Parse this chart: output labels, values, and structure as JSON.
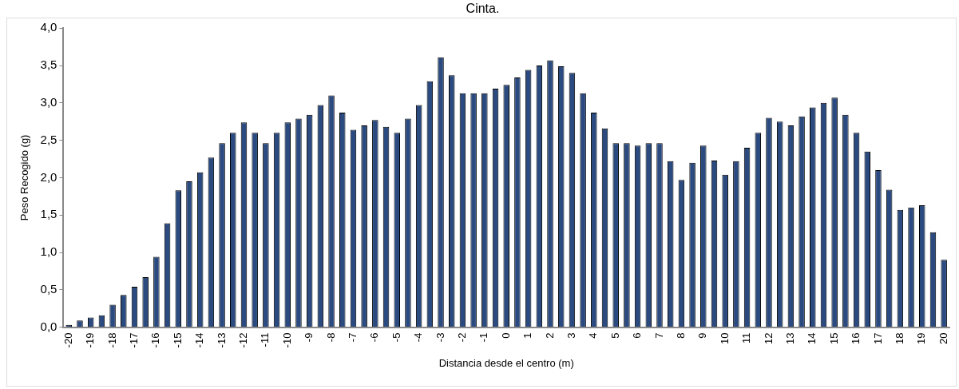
{
  "chart_data": {
    "type": "bar",
    "title": "Cinta.",
    "xlabel": "Distancia desde el centro (m)",
    "ylabel": "Peso Recogido (g)",
    "categories": [
      "-20",
      null,
      "-19",
      null,
      "-18",
      null,
      "-17",
      null,
      "-16",
      null,
      "-15",
      null,
      "-14",
      null,
      "-13",
      null,
      "-12",
      null,
      "-11",
      null,
      "-10",
      null,
      "-9",
      null,
      "-8",
      null,
      "-7",
      null,
      "-6",
      null,
      "-5",
      null,
      "-4",
      null,
      "-3",
      null,
      "-2",
      null,
      "-1",
      null,
      "0",
      null,
      "1",
      null,
      "2",
      null,
      "3",
      null,
      "4",
      null,
      "5",
      null,
      "6",
      null,
      "7",
      null,
      "8",
      null,
      "9",
      null,
      "10",
      null,
      "11",
      null,
      "12",
      null,
      "13",
      null,
      "14",
      null,
      "15",
      null,
      "16",
      null,
      "17",
      null,
      "18",
      null,
      "19",
      null,
      "20"
    ],
    "values": [
      0.03,
      0.09,
      0.13,
      0.16,
      0.3,
      0.43,
      0.54,
      0.67,
      0.94,
      1.39,
      1.83,
      1.95,
      2.07,
      2.27,
      2.46,
      2.6,
      2.74,
      2.6,
      2.46,
      2.6,
      2.74,
      2.79,
      2.84,
      2.97,
      3.1,
      2.87,
      2.64,
      2.7,
      2.77,
      2.68,
      2.6,
      2.79,
      2.97,
      3.29,
      3.61,
      3.37,
      3.13,
      3.13,
      3.13,
      3.19,
      3.24,
      3.34,
      3.44,
      3.5,
      3.57,
      3.49,
      3.4,
      3.13,
      2.87,
      2.66,
      2.46,
      2.46,
      2.43,
      2.46,
      2.46,
      2.22,
      1.97,
      2.2,
      2.43,
      2.23,
      2.04,
      2.22,
      2.4,
      2.6,
      2.8,
      2.75,
      2.7,
      2.82,
      2.94,
      3.0,
      3.07,
      2.84,
      2.6,
      2.35,
      2.1,
      1.84,
      1.57,
      1.6,
      1.63,
      1.27,
      0.9
    ],
    "color": "#2a4a80",
    "ylim": [
      0,
      4
    ],
    "yticks": [
      {
        "value": 0,
        "label": "0,0"
      },
      {
        "value": 0.5,
        "label": "0,5"
      },
      {
        "value": 1,
        "label": "1,0"
      },
      {
        "value": 1.5,
        "label": "1,5"
      },
      {
        "value": 2,
        "label": "2,0"
      },
      {
        "value": 2.5,
        "label": "2,5"
      },
      {
        "value": 3,
        "label": "3,0"
      },
      {
        "value": 3.5,
        "label": "3,5"
      },
      {
        "value": 4,
        "label": "4,0"
      }
    ],
    "grid": false,
    "legend": false
  }
}
